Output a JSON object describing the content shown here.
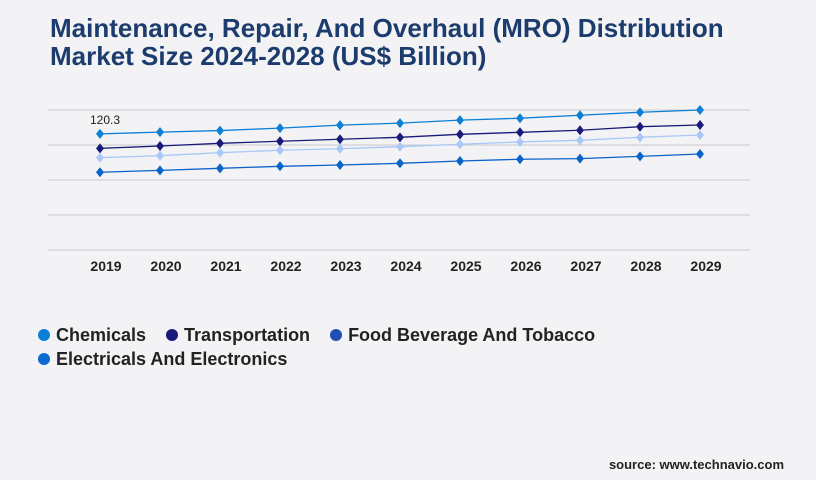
{
  "title": "Maintenance, Repair, And Overhaul (MRO) Distribution Market Size 2024-2028 (US$ Billion)",
  "source": "source: www.technavio.com",
  "chart_data": {
    "type": "line",
    "title": "Maintenance, Repair, And Overhaul (MRO) Distribution Market Size 2024-2028 (US$ Billion)",
    "x": [
      "2019",
      "2020",
      "2021",
      "2022",
      "2023",
      "2024",
      "2025",
      "2026",
      "2027",
      "2028",
      "2029"
    ],
    "ylim": [
      0,
      145
    ],
    "grid": true,
    "legend_placement": "bottom-left",
    "annotations": [
      {
        "series": "Chemicals",
        "x": "2019",
        "text": "120.3"
      }
    ],
    "series": [
      {
        "name": "Chemicals",
        "color": "#0a7fd6",
        "legend_color": "#0a7fd6",
        "values": [
          120.3,
          122.1,
          123.7,
          126.2,
          129.3,
          131.4,
          134.5,
          136.5,
          139.6,
          142.7,
          145.0
        ]
      },
      {
        "name": "Transportation",
        "color": "#1a1a7a",
        "legend_color": "#1a1a7a",
        "values": [
          105.3,
          107.7,
          110.5,
          112.6,
          114.7,
          116.7,
          119.8,
          121.9,
          124.0,
          127.7,
          129.5
        ]
      },
      {
        "name": "Food Beverage And Tobacco",
        "color": "#a9c8f7",
        "legend_color": "#1f4fb3",
        "values": [
          95.6,
          97.7,
          100.8,
          103.3,
          104.9,
          107.0,
          109.5,
          111.9,
          113.6,
          116.7,
          119.1
        ]
      },
      {
        "name": "Electricals And Electronics",
        "color": "#0a63c9",
        "legend_color": "#0a6ad0",
        "values": [
          80.5,
          82.5,
          84.6,
          86.7,
          88.0,
          89.8,
          92.2,
          94.0,
          94.6,
          97.0,
          99.4
        ]
      }
    ]
  }
}
